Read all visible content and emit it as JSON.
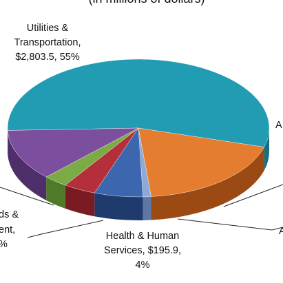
{
  "chart_data": {
    "type": "pie",
    "subtitle": "(in millions of dollars)",
    "slices": [
      {
        "name": "Utilities & Transportation",
        "value": 2803.5,
        "percent": 55,
        "color": "#219cb3",
        "side_color": "#16707f"
      },
      {
        "name": "Ag",
        "value": null,
        "percent": 19,
        "color": "#e57d30",
        "side_color": "#9a4a12"
      },
      {
        "name": "",
        "value": null,
        "percent": 1,
        "color": "#8ea8d8",
        "side_color": "#5f77a5"
      },
      {
        "name": "",
        "value": null,
        "percent": 6,
        "color": "#3c66ae",
        "side_color": "#1f3b6e"
      },
      {
        "name": "Health & Human Services",
        "value": 195.9,
        "percent": 4,
        "color": "#b52f3a",
        "side_color": "#7a1a22"
      },
      {
        "name": "",
        "value": null,
        "percent": 3,
        "color": "#7aab45",
        "side_color": "#4f7a2a"
      },
      {
        "name": "Goods & ...ent",
        "value": null,
        "percent": 12,
        "color": "#7b4f9d",
        "side_color": "#4f2f6a"
      }
    ],
    "labels": {
      "utilities_line1": "Utilities &",
      "utilities_line2": "Transportation,",
      "utilities_line3": "$2,803.5, 55%",
      "health_line1": "Health & Human",
      "health_line2": "Services, $195.9,",
      "health_line3": "4%",
      "right_partial": "A",
      "right_partial2": "A",
      "left_partial1": "ds &",
      "left_partial2": "ent,",
      "left_partial3": "%"
    }
  }
}
